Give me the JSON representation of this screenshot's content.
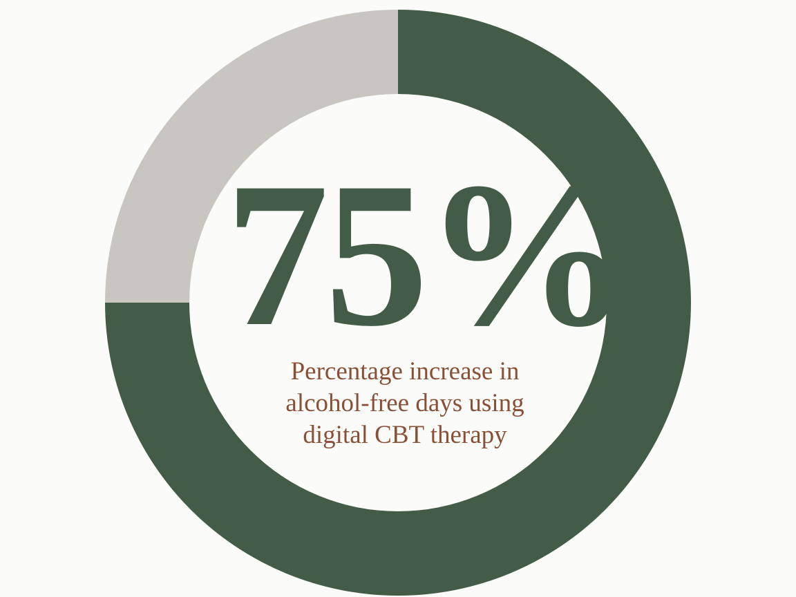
{
  "chart_data": {
    "type": "donut",
    "values": [
      75,
      25
    ],
    "value_labels": [
      "75%",
      null
    ],
    "colors": [
      "#435c48",
      "#c9c5c1"
    ],
    "caption": "Percentage increase in alcohol-free days using digital CBT therapy"
  }
}
